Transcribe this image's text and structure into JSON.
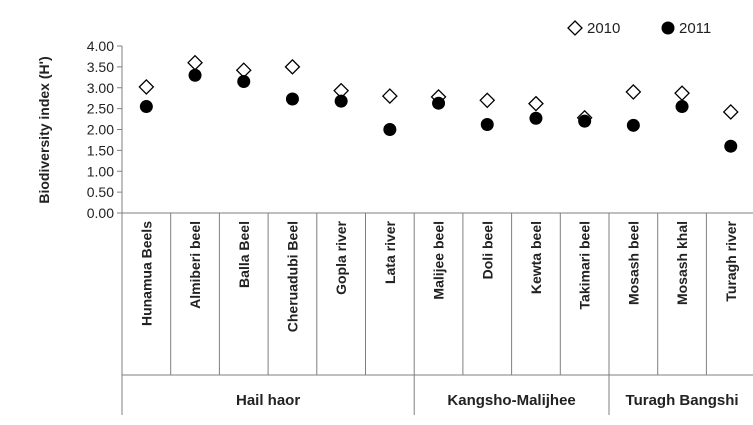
{
  "chart_data": {
    "type": "scatter",
    "ylabel": "Biodiversity index (H')",
    "ylim": [
      0,
      4
    ],
    "yticks": [
      "0.00",
      "0.50",
      "1.00",
      "1.50",
      "2.00",
      "2.50",
      "3.00",
      "3.50",
      "4.00"
    ],
    "categories": [
      "Hunamua Beels",
      "Almiberi beel",
      "Balla Beel",
      "Cheruadubi Beel",
      "Gopla river",
      "Lata river",
      "Malijee beel",
      "Doli beel",
      "Kewta beel",
      "Takimari beel",
      "Mosash beel",
      "Mosash khal",
      "Turagh river"
    ],
    "groups": [
      {
        "label": "Hail haor",
        "count": 6
      },
      {
        "label": "Kangsho-Malijhee",
        "count": 4
      },
      {
        "label": "Turagh Bangshi",
        "count": 3
      }
    ],
    "series": [
      {
        "name": "2010",
        "marker": "diamond-open",
        "color": "#000000",
        "values": [
          3.02,
          3.6,
          3.42,
          3.5,
          2.93,
          2.8,
          2.78,
          2.7,
          2.62,
          2.28,
          2.9,
          2.87,
          2.42
        ]
      },
      {
        "name": "2011",
        "marker": "circle-filled",
        "color": "#000000",
        "values": [
          2.55,
          3.3,
          3.15,
          2.73,
          2.68,
          2.0,
          2.63,
          2.12,
          2.27,
          2.2,
          2.1,
          2.55,
          1.6
        ]
      }
    ],
    "legend": "top-right",
    "grid": false
  }
}
